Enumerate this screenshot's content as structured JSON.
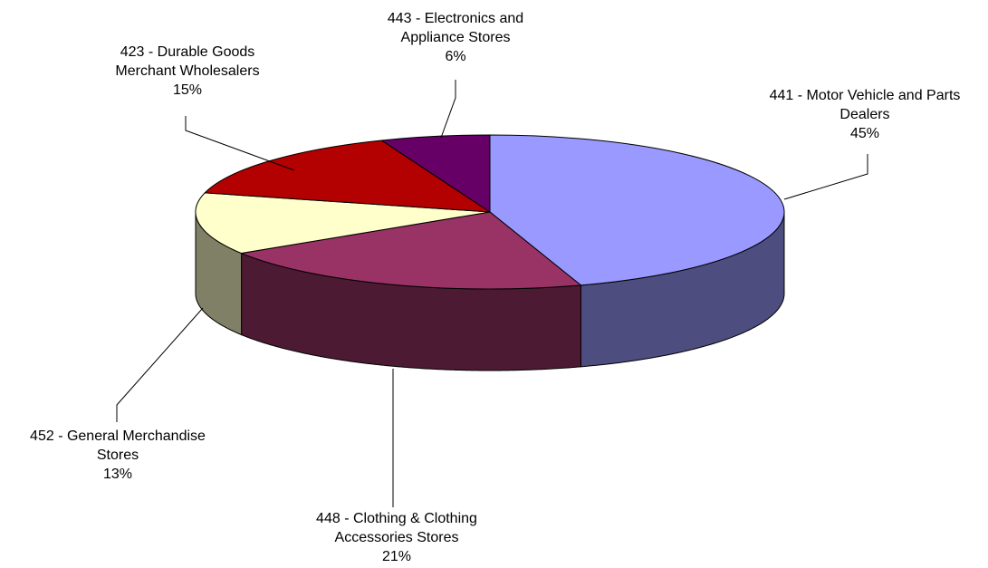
{
  "chart_data": {
    "type": "pie",
    "style": "3d",
    "slices": [
      {
        "code": "441",
        "label_lines": [
          "441 - Motor Vehicle and Parts",
          "Dealers"
        ],
        "percent_label": "45%",
        "value": 45,
        "color": "#9999ff",
        "side_color": "#4d4d80"
      },
      {
        "code": "448",
        "label_lines": [
          "448 - Clothing & Clothing",
          "Accessories Stores"
        ],
        "percent_label": "21%",
        "value": 21,
        "color": "#993366",
        "side_color": "#4d1a33"
      },
      {
        "code": "452",
        "label_lines": [
          "452 - General Merchandise",
          "Stores"
        ],
        "percent_label": "13%",
        "value": 13,
        "color": "#ffffcc",
        "side_color": "#808066"
      },
      {
        "code": "423",
        "label_lines": [
          "423 - Durable Goods",
          "Merchant Wholesalers"
        ],
        "percent_label": "15%",
        "value": 15,
        "color": "#b30000",
        "side_color": "#5a0000"
      },
      {
        "code": "443",
        "label_lines": [
          "443 - Electronics and",
          "Appliance Stores"
        ],
        "percent_label": "6%",
        "value": 6,
        "color": "#660066",
        "side_color": "#330033"
      }
    ],
    "legend": "none",
    "data_labels": "outside with leader lines"
  }
}
